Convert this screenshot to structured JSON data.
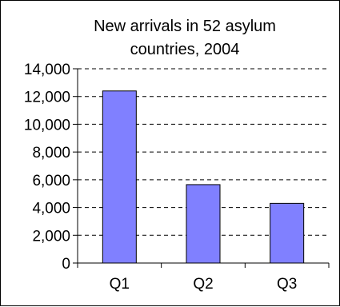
{
  "chart_data": {
    "type": "bar",
    "title_lines": [
      "New  arrivals in 52 asylum",
      "countries, 2004"
    ],
    "categories": [
      "Q1",
      "Q2",
      "Q3"
    ],
    "values": [
      12400,
      5650,
      4300
    ],
    "ylim": [
      0,
      14000
    ],
    "yticks": [
      0,
      2000,
      4000,
      6000,
      8000,
      10000,
      12000,
      14000
    ],
    "ytick_labels": [
      "0",
      "2,000",
      "4,000",
      "6,000",
      "8,000",
      "10,000",
      "12,000",
      "14,000"
    ],
    "grid": true,
    "bar_color": "#8080ff",
    "legend": "none"
  }
}
